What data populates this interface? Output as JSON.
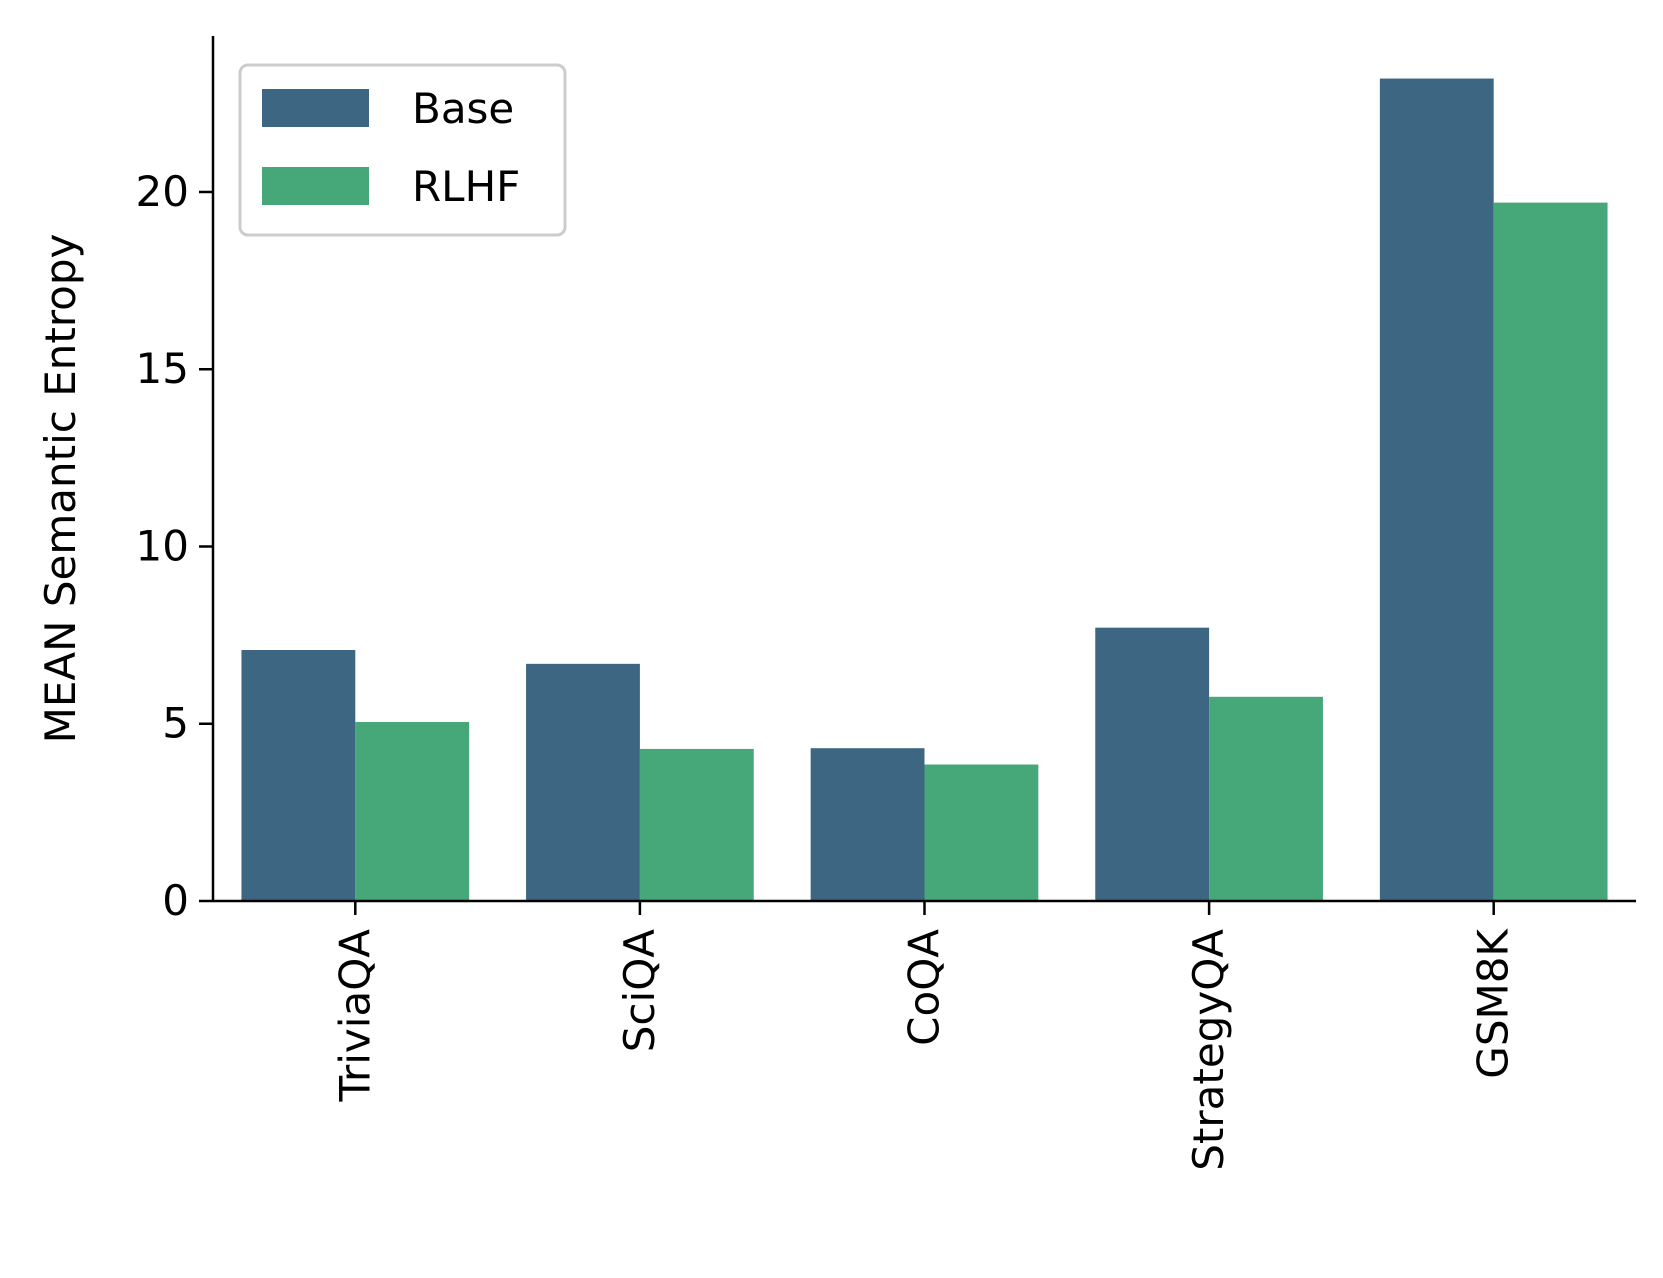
{
  "chart_data": {
    "type": "bar",
    "title": "",
    "xlabel": "",
    "ylabel": "MEAN Semantic Entropy",
    "categories": [
      "TriviaQA",
      "SciQA",
      "CoQA",
      "StrategyQA",
      "GSM8K"
    ],
    "series": [
      {
        "name": "Base",
        "color": "#3d6683",
        "values": [
          7.08,
          6.69,
          4.31,
          7.71,
          23.2
        ]
      },
      {
        "name": "RLHF",
        "color": "#46a878",
        "values": [
          5.05,
          4.29,
          3.85,
          5.76,
          19.7
        ]
      }
    ],
    "ylim": [
      0,
      24.4
    ],
    "yticks": [
      0,
      5,
      10,
      15,
      20
    ],
    "ytick_labels": [
      "0",
      "5",
      "10",
      "15",
      "20"
    ],
    "grid": false,
    "legend_position": "top-left",
    "x_tick_label_rotation": "vertical"
  }
}
